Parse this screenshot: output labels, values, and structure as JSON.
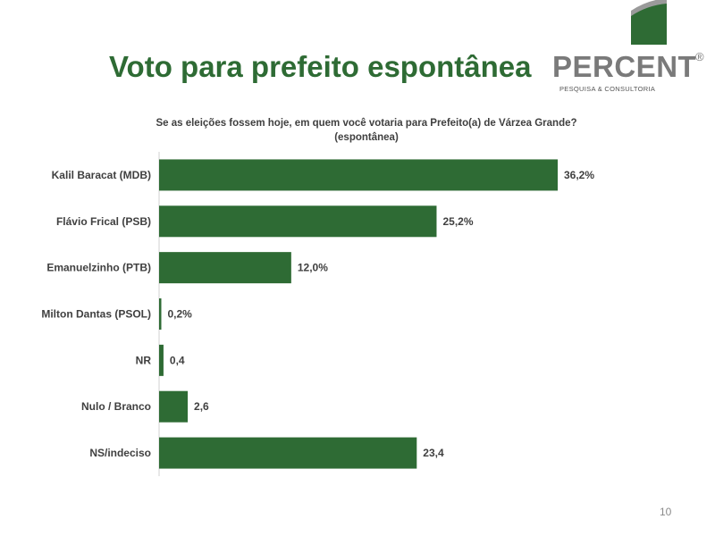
{
  "header": {
    "title": "Voto para prefeito espontânea"
  },
  "logo": {
    "name": "PERCENT",
    "registered": "®",
    "tagline": "PESQUISA & CONSULTORIA"
  },
  "chart_data": {
    "type": "bar",
    "orientation": "horizontal",
    "title": "Se as eleições fossem hoje, em quem você votaria para Prefeito(a) de Várzea Grande?",
    "subtitle": "(espontânea)",
    "categories": [
      "Kalil Baracat (MDB)",
      "Flávio Frical (PSB)",
      "Emanuelzinho (PTB)",
      "Milton Dantas (PSOL)",
      "NR",
      "Nulo / Branco",
      "NS/indeciso"
    ],
    "values": [
      36.2,
      25.2,
      12.0,
      0.2,
      0.4,
      2.6,
      23.4
    ],
    "data_labels": [
      "36,2%",
      "25,2%",
      "12,0%",
      "0,2%",
      "0,4",
      "2,6",
      "23,4"
    ],
    "xlim": [
      0,
      40
    ],
    "grid": false,
    "bar_color": "#2e6b34"
  },
  "footer": {
    "page_number": "10"
  },
  "colors": {
    "accent": "#2e6b34",
    "logo_gray": "#7a7a7a"
  }
}
